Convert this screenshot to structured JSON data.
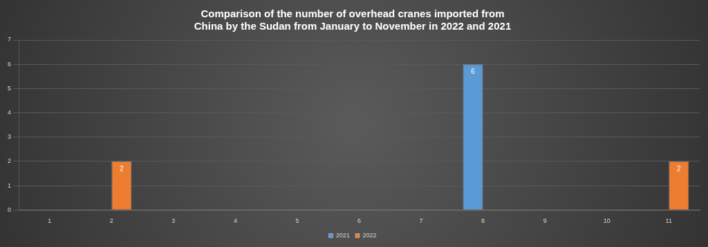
{
  "chart_data": {
    "type": "bar",
    "title": "Comparison of the number of overhead cranes imported from China by the Sudan from January to November in 2022 and 2021",
    "categories": [
      "1",
      "2",
      "3",
      "4",
      "5",
      "6",
      "7",
      "8",
      "9",
      "10",
      "11"
    ],
    "series": [
      {
        "name": "2021",
        "color": "#5b9bd5",
        "values": [
          null,
          null,
          null,
          null,
          null,
          null,
          null,
          6,
          null,
          null,
          null
        ]
      },
      {
        "name": "2022",
        "color": "#ed7d31",
        "values": [
          null,
          2,
          null,
          null,
          null,
          null,
          null,
          null,
          null,
          null,
          2
        ]
      }
    ],
    "ylim": [
      0,
      7
    ],
    "yticks": [
      0,
      1,
      2,
      3,
      4,
      5,
      6,
      7
    ],
    "grid": true,
    "legend": "bottom",
    "data_labels": true
  }
}
